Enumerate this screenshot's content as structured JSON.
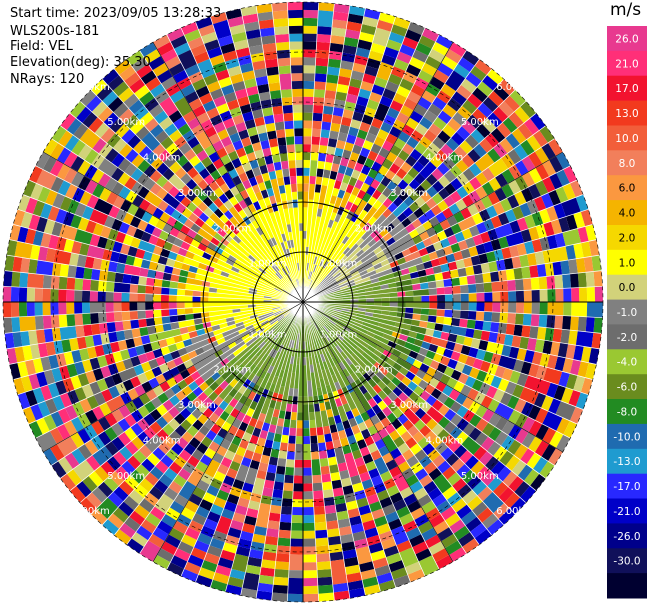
{
  "header": {
    "start_time": "Start time: 2023/09/05 13:28:33",
    "site": "WLS200s-181",
    "field": "Field: VEL",
    "elevation": "Elevation(deg): 35.30",
    "nrays": "NRays: 120"
  },
  "colorbar": {
    "unit": "m/s",
    "ticks": [
      "26.0",
      "21.0",
      "17.0",
      "13.0",
      "10.0",
      "8.0",
      "6.0",
      "4.0",
      "2.0",
      "1.0",
      "0.0",
      "-1.0",
      "-2.0",
      "-4.0",
      "-6.0",
      "-8.0",
      "-10.0",
      "-13.0",
      "-17.0",
      "-21.0",
      "-26.0",
      "-30.0"
    ],
    "colors": [
      "#e8398f",
      "#ff2f78",
      "#f2132f",
      "#f23a1e",
      "#f25e3a",
      "#f27f5b",
      "#fb9840",
      "#f5b400",
      "#f5d800",
      "#ffff00",
      "#d2d27a",
      "#808080",
      "#6d6d6d",
      "#9ac832",
      "#6a8c1e",
      "#228b22",
      "#1f6bb0",
      "#1f9bd0",
      "#2828ff",
      "#0000c8",
      "#00008b",
      "#10105a",
      "#000030"
    ]
  },
  "ring_labels": [
    "1.00km",
    "2.00km",
    "3.00km",
    "4.00km",
    "5.00km",
    "6.00km"
  ],
  "colors": {
    "yellow": "#ffff00",
    "gray": "#8a8a8a",
    "green": "#6a9e2a"
  }
}
